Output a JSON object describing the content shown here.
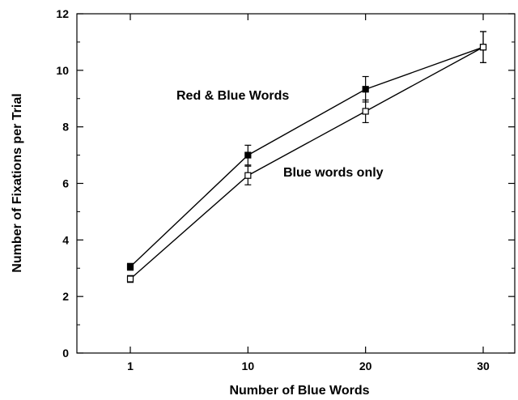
{
  "chart_data": {
    "type": "line",
    "title": "",
    "xlabel": "Number of Blue Words",
    "ylabel": "Number of Fixations per Trial",
    "x": [
      1,
      10,
      20,
      30
    ],
    "x_tick_labels": [
      "1",
      "10",
      "20",
      "30"
    ],
    "ylim": [
      0,
      12
    ],
    "y_ticks": [
      0,
      2,
      4,
      6,
      8,
      10,
      12
    ],
    "y_tick_labels": [
      "0",
      "2",
      "4",
      "6",
      "8",
      "10",
      "12"
    ],
    "grid": false,
    "series": [
      {
        "name": "Red & Blue Words",
        "marker": "filled-square",
        "values": [
          3.05,
          7.0,
          9.33,
          10.82
        ],
        "error": [
          0.12,
          0.35,
          0.45,
          0.55
        ]
      },
      {
        "name": "Blue words only",
        "marker": "open-square",
        "values": [
          2.62,
          6.28,
          8.55,
          10.82
        ],
        "error": [
          0.12,
          0.33,
          0.4,
          0.55
        ]
      }
    ]
  },
  "colors": {
    "line": "#000000",
    "background": "#ffffff"
  }
}
